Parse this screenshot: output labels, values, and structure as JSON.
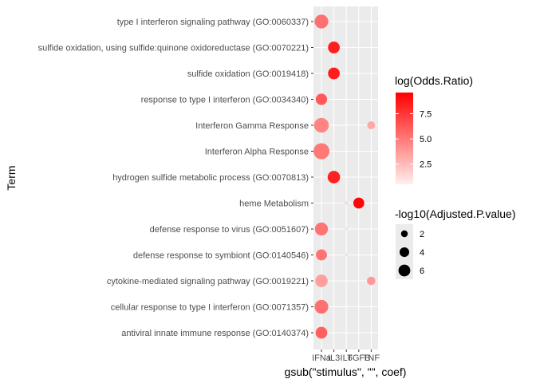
{
  "chart_data": {
    "type": "scatter",
    "xlabel": "gsub(\"stimulus\", \"\", coef)",
    "ylabel": "Term",
    "x_categories": [
      "IFNa",
      "IL3",
      "IL6",
      "TGFB",
      "TNF"
    ],
    "y_categories": [
      "type I interferon signaling pathway (GO:0060337)",
      "sulfide oxidation, using sulfide:quinone oxidoreductase (GO:0070221)",
      "sulfide oxidation (GO:0019418)",
      "response to type I interferon (GO:0034340)",
      "Interferon Gamma Response",
      "Interferon Alpha Response",
      "hydrogen sulfide metabolic process (GO:0070813)",
      "heme Metabolism",
      "defense response to virus (GO:0051607)",
      "defense response to symbiont (GO:0140546)",
      "cytokine-mediated signaling pathway (GO:0019221)",
      "cellular response to type I interferon (GO:0071357)",
      "antiviral innate immune response (GO:0140374)"
    ],
    "points": [
      {
        "x": "IFNa",
        "y": "type I interferon signaling pathway (GO:0060337)",
        "log_odds_ratio": 5.3,
        "neg_log10_adj_p": 5.2
      },
      {
        "x": "IL3",
        "y": "sulfide oxidation, using sulfide:quinone oxidoreductase (GO:0070221)",
        "log_odds_ratio": 8.5,
        "neg_log10_adj_p": 3.8
      },
      {
        "x": "IL3",
        "y": "sulfide oxidation (GO:0019418)",
        "log_odds_ratio": 8.5,
        "neg_log10_adj_p": 3.8
      },
      {
        "x": "IFNa",
        "y": "response to type I interferon (GO:0034340)",
        "log_odds_ratio": 6.2,
        "neg_log10_adj_p": 3.6
      },
      {
        "x": "IFNa",
        "y": "Interferon Gamma Response",
        "log_odds_ratio": 4.6,
        "neg_log10_adj_p": 6.0
      },
      {
        "x": "TNF",
        "y": "Interferon Gamma Response",
        "log_odds_ratio": 3.2,
        "neg_log10_adj_p": 1.8
      },
      {
        "x": "IFNa",
        "y": "Interferon Alpha Response",
        "log_odds_ratio": 5.0,
        "neg_log10_adj_p": 7.0
      },
      {
        "x": "IL3",
        "y": "hydrogen sulfide metabolic process (GO:0070813)",
        "log_odds_ratio": 8.3,
        "neg_log10_adj_p": 4.3
      },
      {
        "x": "TGFB",
        "y": "heme Metabolism",
        "log_odds_ratio": 9.4,
        "neg_log10_adj_p": 3.3
      },
      {
        "x": "IL6",
        "y": "heme Metabolism",
        "log_odds_ratio": 1.6,
        "neg_log10_adj_p": 0.3
      },
      {
        "x": "IFNa",
        "y": "defense response to virus (GO:0051607)",
        "log_odds_ratio": 5.2,
        "neg_log10_adj_p": 4.7
      },
      {
        "x": "IL6",
        "y": "defense response to virus (GO:0051607)",
        "log_odds_ratio": 1.5,
        "neg_log10_adj_p": 0.2
      },
      {
        "x": "IFNa",
        "y": "defense response to symbiont (GO:0140546)",
        "log_odds_ratio": 5.2,
        "neg_log10_adj_p": 3.4
      },
      {
        "x": "IL6",
        "y": "defense response to symbiont (GO:0140546)",
        "log_odds_ratio": 1.5,
        "neg_log10_adj_p": 0.2
      },
      {
        "x": "IFNa",
        "y": "cytokine-mediated signaling pathway (GO:0019221)",
        "log_odds_ratio": 3.6,
        "neg_log10_adj_p": 4.3
      },
      {
        "x": "TNF",
        "y": "cytokine-mediated signaling pathway (GO:0019221)",
        "log_odds_ratio": 3.8,
        "neg_log10_adj_p": 2.0
      },
      {
        "x": "IFNa",
        "y": "cellular response to type I interferon (GO:0071357)",
        "log_odds_ratio": 5.3,
        "neg_log10_adj_p": 5.2
      },
      {
        "x": "IFNa",
        "y": "antiviral innate immune response (GO:0140374)",
        "log_odds_ratio": 6.0,
        "neg_log10_adj_p": 3.8
      }
    ],
    "color_legend": {
      "title": "log(Odds.Ratio)",
      "breaks": [
        "2.5",
        "5.0",
        "7.5"
      ],
      "break_values": [
        2.5,
        5.0,
        7.5
      ],
      "range": [
        0.5,
        9.6
      ],
      "low_color": "#fff0ee",
      "high_color": "#ff0000"
    },
    "size_legend": {
      "title": "-log10(Adjusted.P.value)",
      "breaks": [
        "2",
        "4",
        "6"
      ],
      "break_values": [
        2,
        4,
        6
      ],
      "range": [
        0.2,
        7.0
      ]
    },
    "panel_background": "#ebebeb",
    "grid_color": "#ffffff",
    "legend_position": "right"
  }
}
